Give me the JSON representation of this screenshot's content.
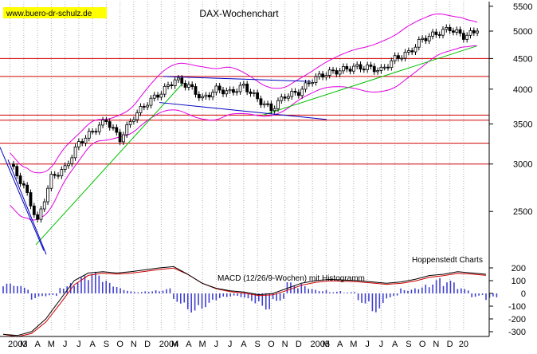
{
  "chart_data": [
    {
      "type": "candlestick",
      "title": "DAX-Wochenchart",
      "watermark": "www.buero-dr-schulz.de",
      "source_note": "Hoppenstedt Charts",
      "y_scale": "log",
      "ylim": [
        2050,
        5600
      ],
      "y_ticks": [
        "5500",
        "5000",
        "4500",
        "4000",
        "3500",
        "3000",
        "2500"
      ],
      "y_tick_values": [
        5500,
        5000,
        4500,
        4000,
        3500,
        3000,
        2500
      ],
      "x_labels": [
        "2003",
        "M",
        "A",
        "M",
        "J",
        "J",
        "A",
        "S",
        "O",
        "N",
        "D",
        "2004",
        "M",
        "A",
        "M",
        "J",
        "J",
        "A",
        "S",
        "O",
        "N",
        "D",
        "2005",
        "M",
        "A",
        "M",
        "J",
        "J",
        "A",
        "S",
        "O",
        "N",
        "D",
        "20"
      ],
      "weekly_close_estimate": [
        {
          "month": "2003-01",
          "close": 3000
        },
        {
          "month": "2003-02",
          "close": 2750
        },
        {
          "month": "2003-03",
          "close": 2400
        },
        {
          "month": "2003-04",
          "close": 2850
        },
        {
          "month": "2003-05",
          "close": 2950
        },
        {
          "month": "2003-06",
          "close": 3250
        },
        {
          "month": "2003-07",
          "close": 3400
        },
        {
          "month": "2003-08",
          "close": 3550
        },
        {
          "month": "2003-09",
          "close": 3300
        },
        {
          "month": "2003-10",
          "close": 3600
        },
        {
          "month": "2003-11",
          "close": 3800
        },
        {
          "month": "2003-12",
          "close": 3950
        },
        {
          "month": "2004-01",
          "close": 4150
        },
        {
          "month": "2004-02",
          "close": 4050
        },
        {
          "month": "2004-03",
          "close": 3850
        },
        {
          "month": "2004-04",
          "close": 4000
        },
        {
          "month": "2004-05",
          "close": 3950
        },
        {
          "month": "2004-06",
          "close": 4050
        },
        {
          "month": "2004-07",
          "close": 3850
        },
        {
          "month": "2004-08",
          "close": 3700
        },
        {
          "month": "2004-09",
          "close": 3900
        },
        {
          "month": "2004-10",
          "close": 3950
        },
        {
          "month": "2004-11",
          "close": 4150
        },
        {
          "month": "2004-12",
          "close": 4250
        },
        {
          "month": "2005-01",
          "close": 4300
        },
        {
          "month": "2005-02",
          "close": 4350
        },
        {
          "month": "2005-03",
          "close": 4350
        },
        {
          "month": "2005-04",
          "close": 4300
        },
        {
          "month": "2005-05",
          "close": 4500
        },
        {
          "month": "2005-06",
          "close": 4600
        },
        {
          "month": "2005-07",
          "close": 4850
        },
        {
          "month": "2005-08",
          "close": 4950
        },
        {
          "month": "2005-09",
          "close": 5050
        },
        {
          "month": "2005-10",
          "close": 4900
        },
        {
          "month": "2005-11",
          "close": 5000
        }
      ],
      "horizontal_lines": [
        4500,
        4200,
        3620,
        3550,
        3250,
        3000
      ],
      "series_colors": {
        "bollinger": "#e000e0",
        "trend_green": "#00c000",
        "trend_blue": "#0000c0",
        "resistance": "#d00000",
        "candles": "#000000"
      },
      "grid": true
    },
    {
      "type": "macd",
      "title": "MACD (12/26/9-Wochen) mit Histogramm",
      "ylim": [
        -300,
        200
      ],
      "y_ticks": [
        "200",
        "100",
        "0",
        "-100",
        "-200",
        "-300"
      ],
      "y_tick_values": [
        200,
        100,
        0,
        -100,
        -200,
        -300
      ],
      "macd_line_estimate": [
        -320,
        -330,
        -300,
        -200,
        -50,
        100,
        160,
        170,
        160,
        170,
        185,
        200,
        210,
        150,
        80,
        40,
        20,
        10,
        -10,
        0,
        40,
        80,
        100,
        110,
        105,
        100,
        90,
        80,
        90,
        110,
        140,
        150,
        170,
        160,
        150
      ],
      "histogram_estimate": [
        80,
        60,
        -50,
        -30,
        90,
        140,
        170,
        100,
        50,
        20,
        30,
        40,
        -80,
        -150,
        -120,
        -60,
        -40,
        -80,
        -130,
        -60,
        90,
        80,
        40,
        20,
        10,
        -80,
        -150,
        -40,
        50,
        80,
        120,
        100,
        40,
        -30,
        -60
      ],
      "series_colors": {
        "macd": "#000000",
        "signal": "#d00000",
        "histogram": "#4040d0"
      }
    }
  ]
}
